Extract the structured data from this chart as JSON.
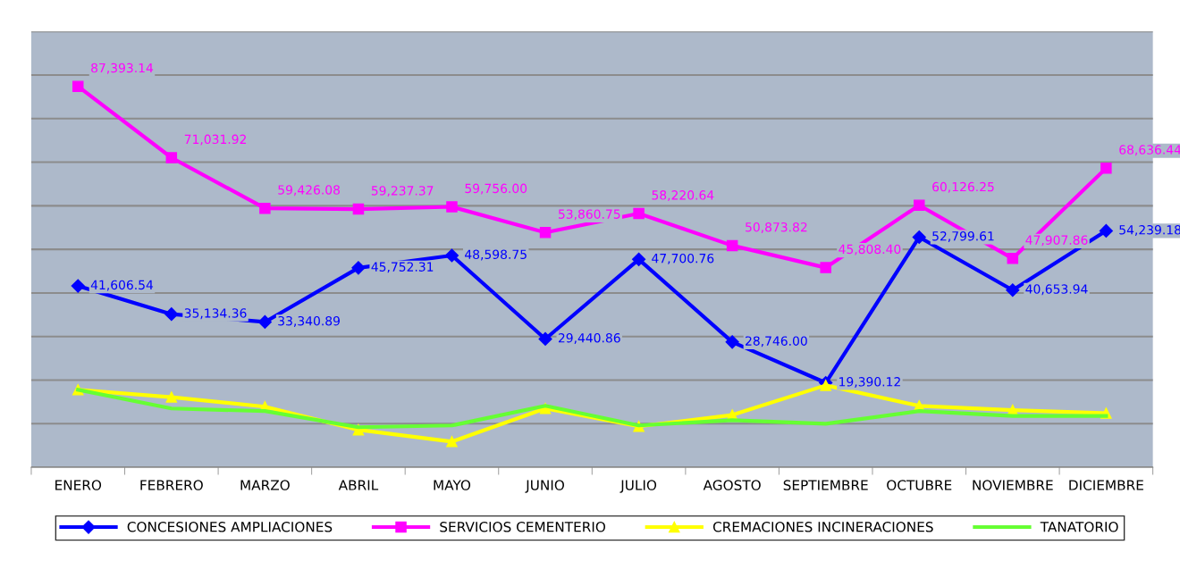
{
  "chart_data": {
    "type": "line",
    "categories": [
      "ENERO",
      "FEBRERO",
      "MARZO",
      "ABRIL",
      "MAYO",
      "JUNIO",
      "JULIO",
      "AGOSTO",
      "SEPTIEMBRE",
      "OCTUBRE",
      "NOVIEMBRE",
      "DICIEMBRE"
    ],
    "series": [
      {
        "name": "CONCESIONES AMPLIACIONES",
        "color": "#0000ff",
        "marker": "diamond",
        "values": [
          41606.54,
          35134.36,
          33340.89,
          45752.31,
          48598.75,
          29440.86,
          47700.76,
          28746.0,
          19390.12,
          52799.61,
          40653.94,
          54239.18
        ],
        "value_labels": [
          "41,606.54",
          "35,134.36",
          "33,340.89",
          "45,752.31",
          "48,598.75",
          "29,440.86",
          "47,700.76",
          "28,746.00",
          "19,390.12",
          "52,799.61",
          "40,653.94",
          "54,239.18"
        ]
      },
      {
        "name": "SERVICIOS CEMENTERIO",
        "color": "#ff00ff",
        "marker": "square",
        "values": [
          87393.14,
          71031.92,
          59426.08,
          59237.37,
          59756.0,
          53860.75,
          58220.64,
          50873.82,
          45808.4,
          60126.25,
          47907.86,
          68636.44
        ],
        "value_labels": [
          "87,393.14",
          "71,031.92",
          "59,426.08",
          "59,237.37",
          "59,756.00",
          "53,860.75",
          "58,220.64",
          "50,873.82",
          "45,808.40",
          "60,126.25",
          "47,907.86",
          "68,636.44"
        ]
      },
      {
        "name": "CREMACIONES INCINERACIONES",
        "color": "#ffff00",
        "marker": "triangle",
        "values": [
          17800,
          16100,
          13900,
          8600,
          5900,
          13500,
          9400,
          12000,
          18800,
          14100,
          13100,
          12400
        ]
      },
      {
        "name": "TANATORIO",
        "color": "#66ff33",
        "marker": "none",
        "values": [
          17800,
          13500,
          12900,
          9200,
          9600,
          14100,
          9600,
          10800,
          10000,
          12900,
          11800,
          11800
        ]
      }
    ],
    "ylim": [
      0,
      100000
    ],
    "yticks": [
      {
        "value": 0,
        "label": null
      },
      {
        "value": 10000,
        "label": null
      },
      {
        "value": 20000,
        "label": null
      },
      {
        "value": 30000,
        "label": null
      },
      {
        "value": 40000,
        "label": null
      },
      {
        "value": 50000,
        "label": null
      },
      {
        "value": 60000,
        "label": null
      },
      {
        "value": 70000,
        "label": null
      },
      {
        "value": 80000,
        "label": null
      },
      {
        "value": 90000,
        "label": null
      },
      {
        "value": 100000,
        "label": null
      }
    ],
    "tick_labels": "x",
    "grid": "y",
    "legend": "bottom",
    "line_style": "solid"
  }
}
